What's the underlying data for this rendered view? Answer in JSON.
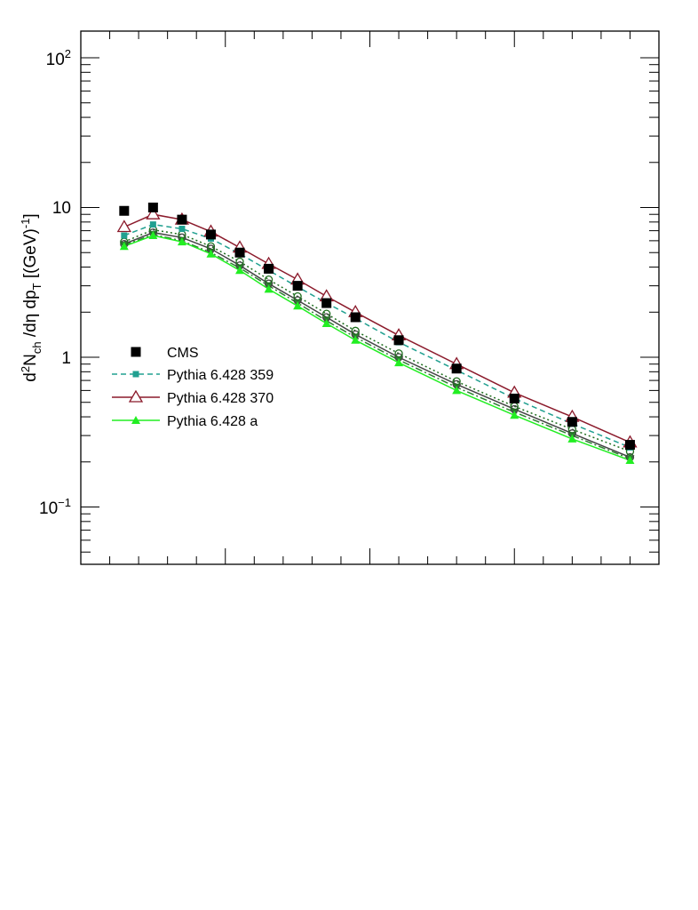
{
  "chart_data": {
    "type": "line",
    "title": "",
    "xlabel": "",
    "ylabel": {
      "main": "d",
      "sup1": "2",
      "n": "N",
      "sub_ch": "ch",
      "mid": " /dη  dp",
      "sub_t": "T",
      "unit": " [(GeV)",
      "sup_neg1": "-1",
      "close": "]"
    },
    "yscale": "log",
    "ylim": [
      0.045,
      160
    ],
    "xlim": [
      0,
      20
    ],
    "ytick_labels": {
      "t100": {
        "base": "10",
        "exp": "2"
      },
      "t10": "10",
      "t1": "1",
      "t01": {
        "base": "10",
        "exp": "−1"
      }
    },
    "x": [
      1.5,
      2.5,
      3.5,
      4.5,
      5.5,
      6.5,
      7.5,
      8.5,
      9.5,
      11,
      13,
      15,
      17,
      19
    ],
    "series": [
      {
        "name": "CMS",
        "color": "#000000",
        "marker": "square-filled",
        "line": "none",
        "values": [
          9.5,
          10.0,
          8.3,
          6.6,
          5.0,
          3.9,
          3.0,
          2.3,
          1.85,
          1.3,
          0.84,
          0.53,
          0.37,
          0.26
        ]
      },
      {
        "name": "Pythia 6.428 359",
        "color": "#20a090",
        "marker": "square-filled-small",
        "line": "dashed",
        "values": [
          6.5,
          7.7,
          7.2,
          6.2,
          4.9,
          3.8,
          2.95,
          2.3,
          1.82,
          1.26,
          0.82,
          0.53,
          0.36,
          0.25
        ]
      },
      {
        "name": "Pythia 6.428 370",
        "color": "#8b1a2b",
        "marker": "triangle-open",
        "line": "solid",
        "values": [
          7.4,
          9.0,
          8.3,
          6.9,
          5.4,
          4.2,
          3.3,
          2.55,
          2.0,
          1.4,
          0.9,
          0.58,
          0.4,
          0.27
        ]
      },
      {
        "name": "Pythia 6.428 a",
        "color": "#22ee22",
        "marker": "triangle-filled",
        "line": "solid",
        "values": [
          5.5,
          6.5,
          5.9,
          4.9,
          3.8,
          2.85,
          2.2,
          1.68,
          1.3,
          0.92,
          0.6,
          0.41,
          0.285,
          0.205
        ]
      },
      {
        "color": "#1e6e1e",
        "marker": "circle-open",
        "line": "dotted",
        "values": [
          5.9,
          7.1,
          6.6,
          5.5,
          4.35,
          3.3,
          2.55,
          1.95,
          1.5,
          1.06,
          0.69,
          0.47,
          0.33,
          0.235
        ]
      },
      {
        "color": "#444444",
        "marker": "circle-open",
        "line": "solid",
        "values": [
          5.7,
          6.8,
          6.3,
          5.3,
          4.1,
          3.1,
          2.4,
          1.85,
          1.42,
          1.0,
          0.66,
          0.45,
          0.31,
          0.215
        ]
      },
      {
        "color": "#2e7d32",
        "marker": "triangle-down-filled",
        "line": "dashdot",
        "values": [
          5.6,
          6.6,
          6.0,
          5.0,
          3.95,
          3.0,
          2.3,
          1.75,
          1.36,
          0.96,
          0.63,
          0.43,
          0.3,
          0.21
        ]
      }
    ],
    "legend": {
      "placement": "left-middle",
      "entries": [
        {
          "label": "CMS",
          "series": 0
        },
        {
          "label": "Pythia 6.428 359",
          "series": 1
        },
        {
          "label": "Pythia 6.428 370",
          "series": 2
        },
        {
          "label": "Pythia 6.428 a",
          "series": 3
        }
      ]
    }
  }
}
